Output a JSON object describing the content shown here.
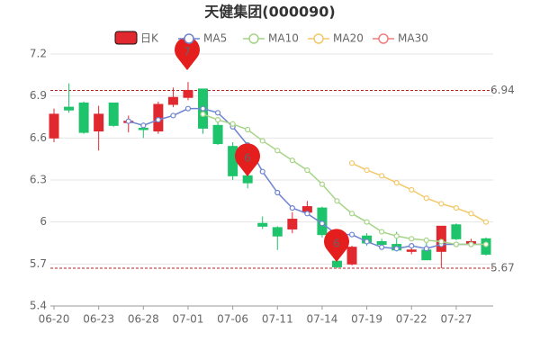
{
  "chart_data": {
    "type": "candlestick",
    "title": "天健集团(000090)",
    "categories": [
      "06-20",
      null,
      null,
      "06-23",
      null,
      null,
      "06-28",
      null,
      null,
      "07-01",
      null,
      null,
      "07-06",
      null,
      null,
      "07-11",
      null,
      null,
      "07-14",
      null,
      null,
      "07-19",
      null,
      null,
      "07-22",
      null,
      null,
      "07-27",
      null,
      null
    ],
    "candles": {
      "name": "日K",
      "up_color": "#e0282e",
      "down_color": "#1ec46b",
      "open": [
        6.6,
        6.82,
        6.85,
        6.65,
        6.85,
        6.71,
        6.67,
        6.65,
        6.84,
        6.89,
        6.95,
        6.69,
        6.54,
        6.33,
        5.99,
        5.96,
        5.95,
        6.07,
        6.1,
        5.72,
        5.7,
        5.9,
        5.86,
        5.84,
        5.79,
        5.8,
        5.79,
        5.98,
        5.84,
        5.88
      ],
      "close": [
        6.77,
        6.8,
        6.64,
        6.77,
        6.69,
        6.72,
        6.66,
        6.84,
        6.89,
        6.94,
        6.67,
        6.56,
        6.33,
        6.28,
        5.97,
        5.9,
        6.02,
        6.11,
        5.91,
        5.68,
        5.82,
        5.85,
        5.84,
        5.8,
        5.8,
        5.73,
        5.97,
        5.88,
        5.86,
        5.77
      ],
      "high": [
        6.81,
        6.99,
        6.86,
        6.83,
        6.85,
        6.76,
        6.71,
        6.86,
        6.96,
        7.0,
        6.95,
        6.72,
        6.57,
        6.35,
        6.04,
        5.97,
        6.07,
        6.15,
        6.11,
        5.74,
        5.83,
        5.92,
        5.88,
        5.93,
        5.83,
        5.85,
        5.97,
        5.99,
        5.88,
        5.89
      ],
      "low": [
        6.57,
        6.78,
        6.63,
        6.51,
        6.68,
        6.64,
        6.6,
        6.63,
        6.82,
        6.87,
        6.63,
        6.55,
        6.3,
        6.24,
        5.95,
        5.8,
        5.92,
        6.05,
        5.89,
        5.67,
        5.69,
        5.83,
        5.82,
        5.79,
        5.77,
        5.73,
        5.67,
        5.87,
        5.83,
        5.76
      ]
    },
    "series": [
      {
        "name": "MA5",
        "color": "#6e83cf",
        "values": [
          null,
          null,
          null,
          null,
          null,
          6.72,
          6.69,
          6.73,
          6.76,
          6.81,
          6.81,
          6.78,
          6.68,
          6.55,
          6.36,
          6.21,
          6.1,
          6.06,
          5.99,
          5.91,
          5.91,
          5.86,
          5.82,
          5.81,
          5.83,
          5.81,
          5.84,
          5.84,
          5.84,
          5.84
        ]
      },
      {
        "name": "MA10",
        "color": "#a6d486",
        "values": [
          null,
          null,
          null,
          null,
          null,
          null,
          null,
          null,
          null,
          null,
          6.77,
          6.73,
          6.7,
          6.66,
          6.58,
          6.51,
          6.44,
          6.37,
          6.27,
          6.15,
          6.06,
          6.0,
          5.93,
          5.9,
          5.88,
          5.87,
          5.86,
          5.84,
          5.84,
          5.84
        ]
      },
      {
        "name": "MA20",
        "color": "#f3c86a",
        "values": [
          null,
          null,
          null,
          null,
          null,
          null,
          null,
          null,
          null,
          null,
          null,
          null,
          null,
          null,
          null,
          null,
          null,
          null,
          null,
          null,
          6.42,
          6.37,
          6.33,
          6.28,
          6.23,
          6.17,
          6.13,
          6.1,
          6.06,
          6.0
        ]
      },
      {
        "name": "MA30",
        "color": "#ee7e7e",
        "values": [
          null,
          null,
          null,
          null,
          null,
          null,
          null,
          null,
          null,
          null,
          null,
          null,
          null,
          null,
          null,
          null,
          null,
          null,
          null,
          null,
          null,
          null,
          null,
          null,
          null,
          null,
          null,
          null,
          null,
          null
        ]
      }
    ],
    "ylim": [
      5.4,
      7.2
    ],
    "yticks": [
      5.4,
      5.7,
      6,
      6.3,
      6.6,
      6.9,
      7.2
    ],
    "grid": true,
    "reference_lines": [
      6.94,
      5.67
    ],
    "annotations": [
      "7",
      "6",
      "6"
    ]
  }
}
